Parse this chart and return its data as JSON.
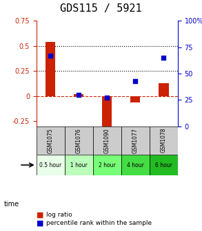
{
  "title": "GDS115 / 5921",
  "samples": [
    "GSM1075",
    "GSM1076",
    "GSM1090",
    "GSM1077",
    "GSM1078"
  ],
  "time_labels": [
    "0.5 hour",
    "1 hour",
    "2 hour",
    "4 hour",
    "6 hour"
  ],
  "time_colors": [
    "#ccffcc",
    "#99ff99",
    "#66ff66",
    "#33cc33",
    "#00bb00"
  ],
  "log_ratios": [
    0.54,
    0.02,
    -0.3,
    -0.06,
    0.13
  ],
  "percentile_ranks": [
    67,
    30,
    27,
    43,
    65
  ],
  "bar_color": "#cc2200",
  "dot_color": "#0000cc",
  "ylim_left": [
    -0.3,
    0.75
  ],
  "ylim_right": [
    0,
    100
  ],
  "yticks_left": [
    -0.25,
    0,
    0.25,
    0.5,
    0.75
  ],
  "yticks_right": [
    0,
    25,
    50,
    75,
    100
  ],
  "hlines": [
    0.25,
    0.5
  ],
  "background_color": "#ffffff",
  "plot_bg": "#ffffff",
  "title_fontsize": 11,
  "tick_fontsize": 7,
  "label_fontsize": 7
}
